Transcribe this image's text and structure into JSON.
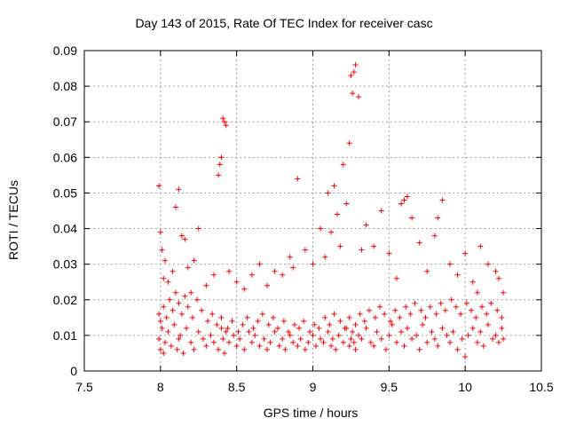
{
  "chart_data": {
    "type": "scatter",
    "title": "Day 143 of 2015, Rate Of TEC Index for receiver casc",
    "xlabel": "GPS time / hours",
    "ylabel": "ROTI / TECUs",
    "xlim": [
      7.5,
      10.5
    ],
    "ylim": [
      0,
      0.09
    ],
    "xticks": [
      "7.5",
      "8",
      "8.5",
      "9",
      "9.5",
      "10",
      "10.5"
    ],
    "yticks": [
      "0",
      "0.01",
      "0.02",
      "0.03",
      "0.04",
      "0.05",
      "0.06",
      "0.07",
      "0.08",
      "0.09"
    ],
    "grid": true,
    "marker": "+",
    "color": "#ff0000",
    "series": [
      {
        "name": "ROTI",
        "x": [
          7.99,
          8.0,
          8.01,
          8.02,
          8.03,
          8.05,
          8.07,
          8.09,
          8.11,
          8.12,
          8.13,
          8.15,
          8.17,
          8.2,
          8.22,
          8.25,
          8.28,
          8.3,
          8.33,
          8.35,
          8.38,
          8.4,
          8.41,
          8.42,
          8.43,
          8.45,
          8.48,
          8.5,
          8.52,
          8.55,
          8.58,
          8.6,
          8.62,
          8.65,
          8.68,
          8.7,
          8.72,
          8.75,
          8.78,
          8.8,
          8.82,
          8.85,
          8.87,
          8.9,
          8.92,
          8.95,
          8.97,
          9.0,
          9.02,
          9.05,
          9.07,
          9.1,
          9.12,
          9.13,
          9.15,
          9.17,
          9.2,
          9.22,
          9.24,
          9.25,
          9.26,
          9.27,
          9.28,
          9.3,
          9.32,
          9.35,
          9.38,
          9.4,
          9.42,
          9.45,
          9.48,
          9.5,
          9.52,
          9.55,
          9.58,
          9.6,
          9.62,
          9.65,
          9.68,
          9.7,
          9.72,
          9.75,
          9.78,
          9.8,
          9.82,
          9.85,
          9.88,
          9.9,
          9.92,
          9.95,
          9.98,
          10.0,
          10.02,
          10.05,
          10.08,
          10.1,
          10.12,
          10.15,
          10.18,
          10.2,
          10.22,
          10.24,
          10.25,
          7.99,
          8.0,
          8.02,
          8.04,
          8.06,
          8.08,
          8.1,
          8.12,
          8.14,
          8.16,
          8.18,
          8.21,
          8.24,
          8.27,
          8.31,
          8.34,
          8.37,
          8.4,
          8.44,
          8.47,
          8.51,
          8.54,
          8.57,
          8.61,
          8.64,
          8.67,
          8.71,
          8.74,
          8.77,
          8.81,
          8.84,
          8.88,
          8.91,
          8.94,
          8.98,
          9.01,
          9.04,
          9.08,
          9.11,
          9.14,
          9.18,
          9.21,
          9.24,
          9.28,
          9.31,
          9.34,
          9.37,
          9.41,
          9.44,
          9.47,
          9.51,
          9.54,
          9.57,
          9.61,
          9.64,
          9.67,
          9.71,
          9.74,
          9.77,
          9.81,
          9.84,
          9.87,
          9.91,
          9.94,
          9.97,
          10.01,
          10.04,
          10.07,
          10.11,
          10.14,
          10.17,
          10.21,
          10.24,
          7.99,
          8.0,
          8.01,
          8.02,
          8.03,
          8.05,
          8.08,
          8.1,
          8.12,
          8.14,
          8.16,
          8.18,
          8.2,
          8.22,
          8.25,
          8.3,
          8.35,
          8.38,
          8.39,
          8.4,
          8.41,
          8.42,
          8.43,
          8.45,
          8.5,
          8.55,
          8.6,
          8.65,
          8.7,
          8.75,
          8.8,
          8.85,
          8.87,
          8.9,
          8.95,
          9.0,
          9.05,
          9.08,
          9.1,
          9.12,
          9.14,
          9.16,
          9.18,
          9.2,
          9.22,
          9.24,
          9.25,
          9.26,
          9.27,
          9.28,
          9.3,
          9.32,
          9.35,
          9.4,
          9.45,
          9.5,
          9.55,
          9.58,
          9.6,
          9.62,
          9.65,
          9.7,
          9.75,
          9.8,
          9.82,
          9.85,
          9.9,
          9.95,
          10.0,
          10.05,
          10.08,
          10.1,
          10.15,
          10.2,
          10.22,
          10.25
        ],
        "y": [
          0.009,
          0.006,
          0.012,
          0.005,
          0.008,
          0.011,
          0.007,
          0.013,
          0.006,
          0.009,
          0.01,
          0.005,
          0.012,
          0.008,
          0.006,
          0.011,
          0.009,
          0.007,
          0.01,
          0.008,
          0.006,
          0.012,
          0.009,
          0.005,
          0.011,
          0.008,
          0.01,
          0.007,
          0.009,
          0.006,
          0.011,
          0.008,
          0.01,
          0.007,
          0.009,
          0.006,
          0.008,
          0.011,
          0.007,
          0.009,
          0.006,
          0.01,
          0.008,
          0.007,
          0.009,
          0.006,
          0.008,
          0.01,
          0.007,
          0.009,
          0.008,
          0.011,
          0.007,
          0.009,
          0.006,
          0.01,
          0.008,
          0.012,
          0.007,
          0.009,
          0.011,
          0.008,
          0.006,
          0.01,
          0.009,
          0.012,
          0.008,
          0.007,
          0.011,
          0.009,
          0.006,
          0.01,
          0.013,
          0.008,
          0.011,
          0.007,
          0.012,
          0.009,
          0.01,
          0.006,
          0.013,
          0.008,
          0.011,
          0.009,
          0.007,
          0.012,
          0.01,
          0.008,
          0.011,
          0.006,
          0.009,
          0.004,
          0.01,
          0.012,
          0.008,
          0.011,
          0.007,
          0.013,
          0.009,
          0.01,
          0.008,
          0.012,
          0.009,
          0.016,
          0.014,
          0.018,
          0.015,
          0.02,
          0.017,
          0.022,
          0.019,
          0.016,
          0.021,
          0.018,
          0.015,
          0.02,
          0.017,
          0.014,
          0.016,
          0.013,
          0.015,
          0.012,
          0.014,
          0.011,
          0.013,
          0.015,
          0.012,
          0.014,
          0.016,
          0.013,
          0.015,
          0.012,
          0.014,
          0.011,
          0.013,
          0.012,
          0.014,
          0.011,
          0.013,
          0.012,
          0.015,
          0.013,
          0.016,
          0.014,
          0.012,
          0.015,
          0.013,
          0.016,
          0.014,
          0.017,
          0.015,
          0.018,
          0.016,
          0.014,
          0.017,
          0.015,
          0.018,
          0.016,
          0.019,
          0.017,
          0.015,
          0.018,
          0.016,
          0.019,
          0.017,
          0.02,
          0.018,
          0.016,
          0.019,
          0.017,
          0.015,
          0.018,
          0.016,
          0.019,
          0.017,
          0.015,
          0.052,
          0.039,
          0.034,
          0.026,
          0.031,
          0.025,
          0.028,
          0.046,
          0.051,
          0.038,
          0.037,
          0.029,
          0.022,
          0.031,
          0.04,
          0.024,
          0.027,
          0.055,
          0.058,
          0.06,
          0.071,
          0.07,
          0.069,
          0.028,
          0.025,
          0.023,
          0.027,
          0.03,
          0.024,
          0.028,
          0.027,
          0.032,
          0.029,
          0.054,
          0.034,
          0.03,
          0.04,
          0.032,
          0.05,
          0.039,
          0.052,
          0.044,
          0.035,
          0.058,
          0.047,
          0.064,
          0.083,
          0.078,
          0.084,
          0.086,
          0.077,
          0.034,
          0.041,
          0.035,
          0.045,
          0.033,
          0.026,
          0.047,
          0.048,
          0.049,
          0.043,
          0.036,
          0.028,
          0.038,
          0.043,
          0.048,
          0.03,
          0.027,
          0.033,
          0.025,
          0.022,
          0.035,
          0.03,
          0.028,
          0.026,
          0.022
        ]
      }
    ]
  }
}
